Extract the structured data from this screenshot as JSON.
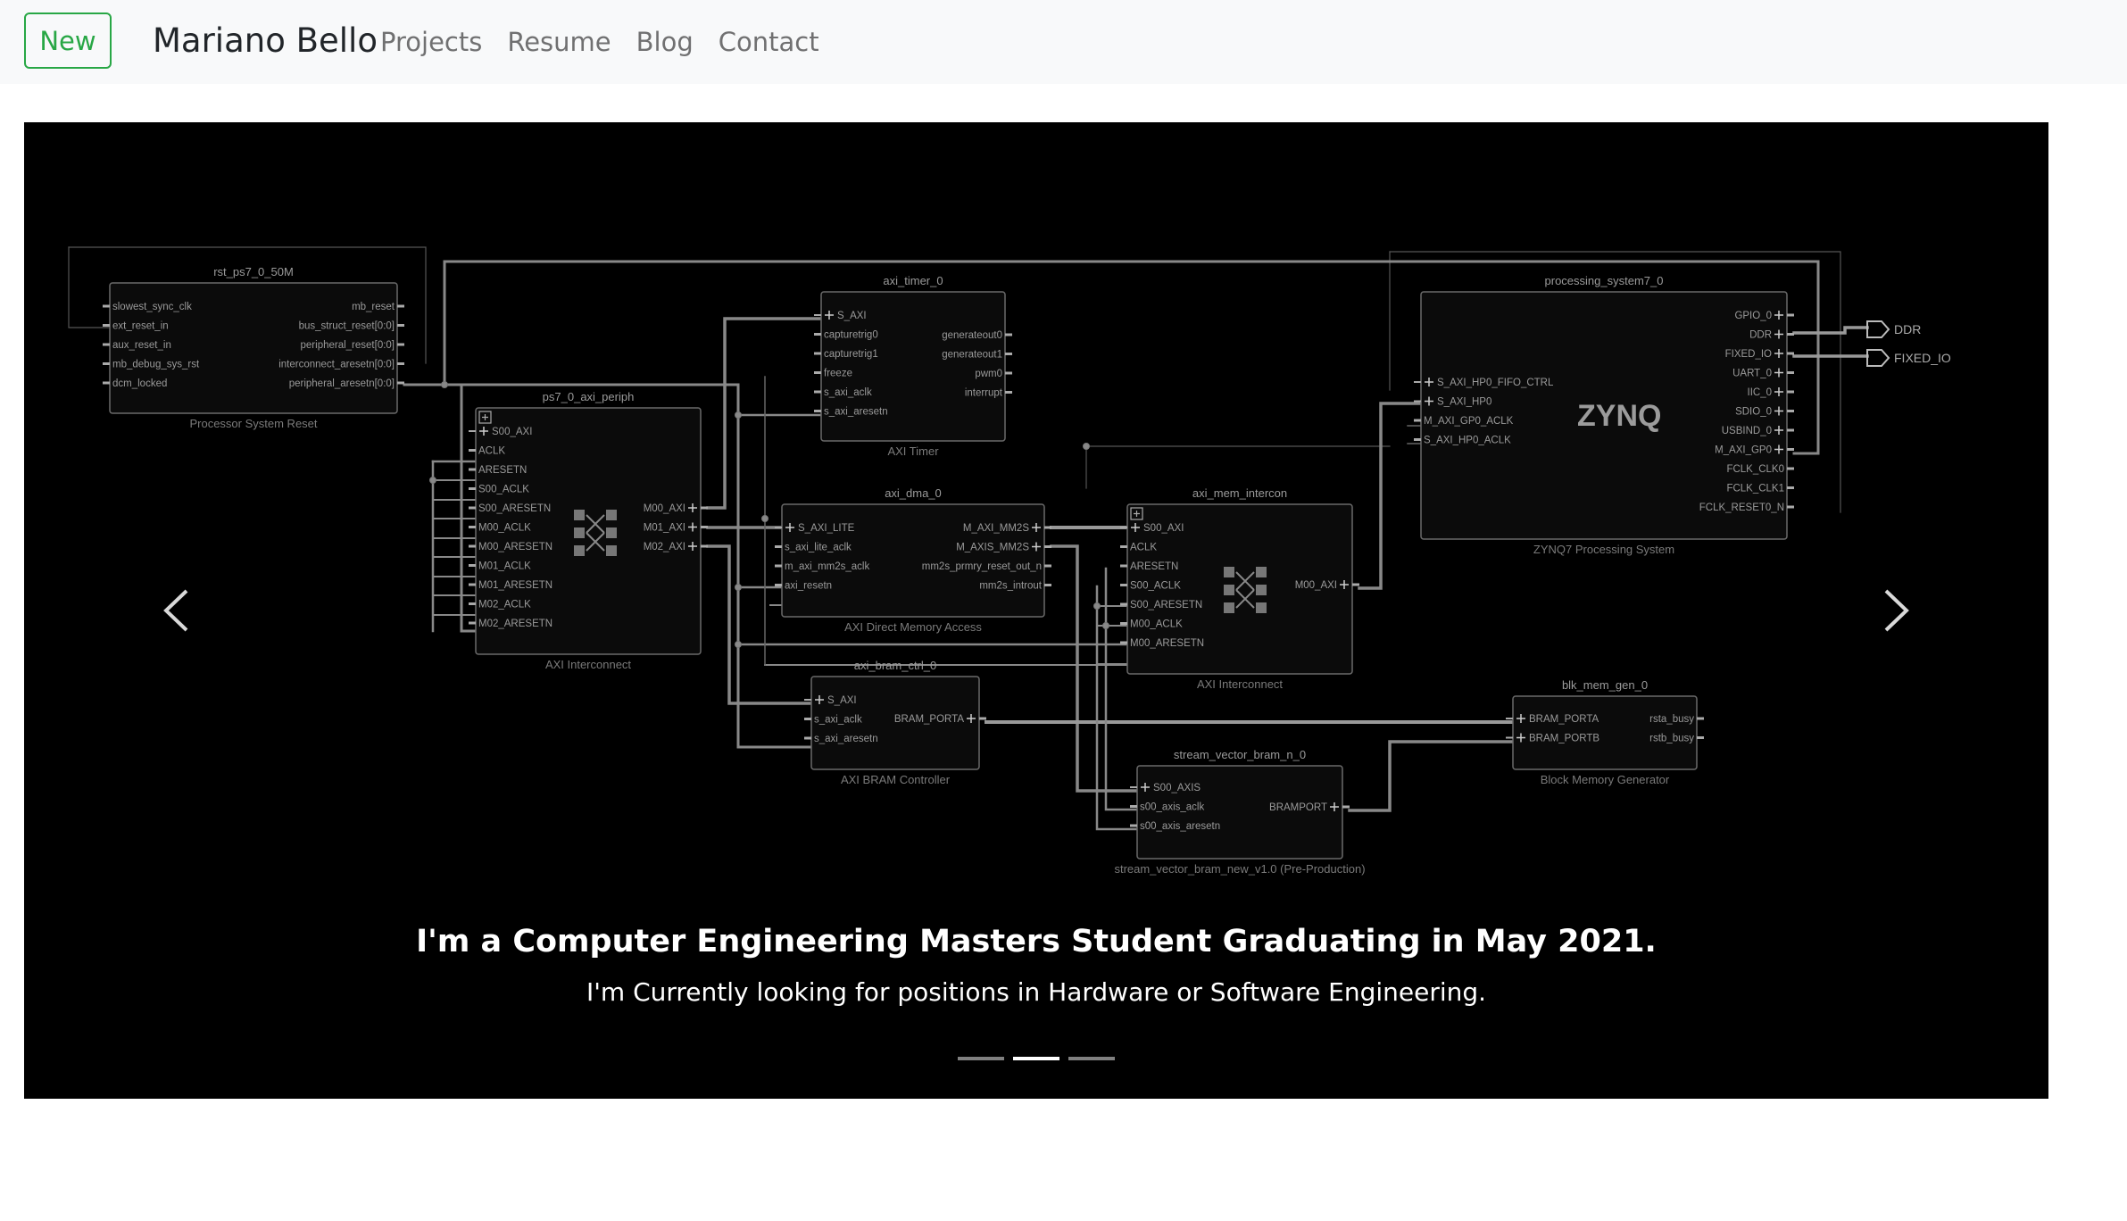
{
  "navbar": {
    "new_button": "New",
    "brand": "Mariano Bello",
    "links": [
      "Projects",
      "Resume",
      "Blog",
      "Contact"
    ]
  },
  "carousel": {
    "caption_title": "I'm a Computer Engineering Masters Student Graduating in May 2021.",
    "caption_subtitle": "I'm Currently looking for positions in Hardware or Software Engineering.",
    "indicator_count": 3,
    "active_indicator": 1,
    "prev_icon": "chevron-left-icon",
    "next_icon": "chevron-right-icon"
  },
  "diagram": {
    "rst": {
      "name": "rst_ps7_0_50M",
      "left_ports": [
        "slowest_sync_clk",
        "ext_reset_in",
        "aux_reset_in",
        "mb_debug_sys_rst",
        "dcm_locked"
      ],
      "right_ports": [
        "mb_reset",
        "bus_struct_reset[0:0]",
        "peripheral_reset[0:0]",
        "interconnect_aresetn[0:0]",
        "peripheral_aresetn[0:0]"
      ],
      "caption": "Processor System Reset"
    },
    "periph": {
      "name": "ps7_0_axi_periph",
      "left_ports": [
        "S00_AXI",
        "ACLK",
        "ARESETN",
        "S00_ACLK",
        "S00_ARESETN",
        "M00_ACLK",
        "M00_ARESETN",
        "M01_ACLK",
        "M01_ARESETN",
        "M02_ACLK",
        "M02_ARESETN"
      ],
      "right_ports": [
        "M00_AXI",
        "M01_AXI",
        "M02_AXI"
      ],
      "caption": "AXI Interconnect"
    },
    "timer": {
      "name": "axi_timer_0",
      "left_ports": [
        "S_AXI",
        "capturetrig0",
        "capturetrig1",
        "freeze",
        "s_axi_aclk",
        "s_axi_aresetn"
      ],
      "right_ports": [
        "generateout0",
        "generateout1",
        "pwm0",
        "interrupt"
      ],
      "caption": "AXI Timer"
    },
    "dma": {
      "name": "axi_dma_0",
      "left_ports": [
        "S_AXI_LITE",
        "s_axi_lite_aclk",
        "m_axi_mm2s_aclk",
        "axi_resetn"
      ],
      "right_ports": [
        "M_AXI_MM2S",
        "M_AXIS_MM2S",
        "mm2s_prmry_reset_out_n",
        "mm2s_introut"
      ],
      "caption": "AXI Direct Memory Access"
    },
    "bram_ctrl": {
      "name": "axi_bram_ctrl_0",
      "left_ports": [
        "S_AXI",
        "s_axi_aclk",
        "s_axi_aresetn"
      ],
      "right_ports": [
        "BRAM_PORTA"
      ],
      "caption": "AXI BRAM Controller"
    },
    "mem_intercon": {
      "name": "axi_mem_intercon",
      "left_ports": [
        "S00_AXI",
        "ACLK",
        "ARESETN",
        "S00_ACLK",
        "S00_ARESETN",
        "M00_ACLK",
        "M00_ARESETN"
      ],
      "right_ports": [
        "M00_AXI"
      ],
      "caption": "AXI Interconnect"
    },
    "ps7": {
      "name": "processing_system7_0",
      "left_ports": [
        "S_AXI_HP0_FIFO_CTRL",
        "S_AXI_HP0",
        "M_AXI_GP0_ACLK",
        "S_AXI_HP0_ACLK"
      ],
      "right_ports": [
        "GPIO_0",
        "DDR",
        "FIXED_IO",
        "UART_0",
        "IIC_0",
        "SDIO_0",
        "USBIND_0",
        "M_AXI_GP0",
        "FCLK_CLK0",
        "FCLK_CLK1",
        "FCLK_RESET0_N"
      ],
      "logo": "ZYNQ",
      "caption": "ZYNQ7 Processing System",
      "external": [
        "DDR",
        "FIXED_IO"
      ]
    },
    "blk_mem": {
      "name": "blk_mem_gen_0",
      "left_ports": [
        "BRAM_PORTA",
        "BRAM_PORTB"
      ],
      "right_ports": [
        "rsta_busy",
        "rstb_busy"
      ],
      "caption": "Block Memory Generator"
    },
    "stream": {
      "name": "stream_vector_bram_n_0",
      "left_ports": [
        "S00_AXIS",
        "s00_axis_aclk",
        "s00_axis_aresetn"
      ],
      "right_ports": [
        "BRAMPORT"
      ],
      "caption": "stream_vector_bram_new_v1.0 (Pre-Production)"
    }
  }
}
